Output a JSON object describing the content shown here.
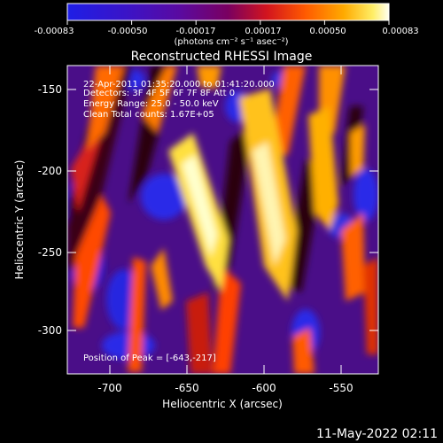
{
  "colorbar": {
    "ticks": [
      "-0.00083",
      "-0.00050",
      "-0.00017",
      "0.00017",
      "0.00050",
      "0.00083"
    ],
    "units_label": "(photons cm⁻² s⁻¹ asec⁻²)"
  },
  "image": {
    "title": "Reconstructed RHESSI Image",
    "info_lines": [
      "22-Apr-2011 01:35:20.000 to 01:41:20.000",
      "Detectors: 3F 4F 5F 6F 7F 8F  Att 0",
      "Energy Range: 25.0 - 50.0 keV",
      "Clean     Total counts: 1.67E+05"
    ],
    "peak_label": "Position of Peak = [-643,-217]"
  },
  "axes": {
    "xlabel": "Heliocentric X (arcsec)",
    "ylabel": "Heliocentric Y (arcsec)",
    "xticks": [
      "-700",
      "-650",
      "-600",
      "-550"
    ],
    "yticks": [
      "-150",
      "-200",
      "-250",
      "-300"
    ]
  },
  "footer": {
    "timestamp": "11-May-2022 02:11"
  }
}
